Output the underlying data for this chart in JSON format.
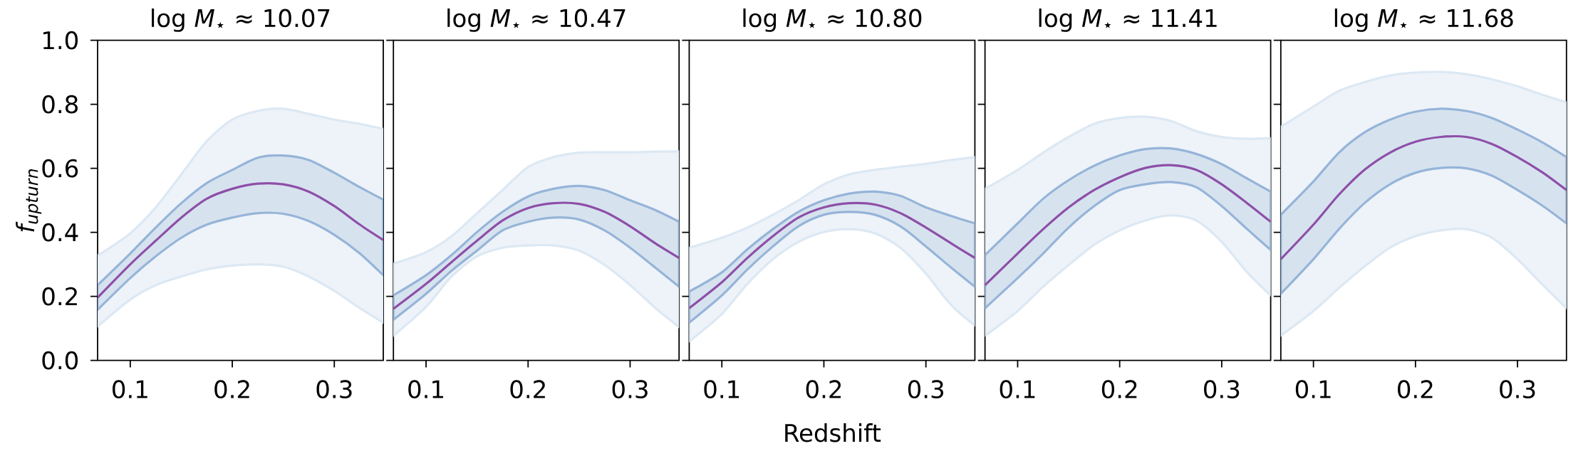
{
  "chart_data": [
    {
      "type": "line",
      "title": "log *M*$_{⋆}$ ≈ 10.07",
      "ylabel": "f$_{upturn}$",
      "x": [
        0.068,
        0.1,
        0.125,
        0.15,
        0.175,
        0.2,
        0.225,
        0.25,
        0.275,
        0.3,
        0.325,
        0.348
      ],
      "xlim": [
        0.068,
        0.348
      ],
      "xticks": [
        0.1,
        0.2,
        0.3
      ],
      "ylim": [
        0,
        1
      ],
      "yticks": [
        {
          "value": 0,
          "label": "0.0"
        },
        0.2,
        0.4,
        0.6,
        0.8,
        {
          "value": 1,
          "label": "1.0"
        }
      ],
      "grid": false,
      "series": [
        {
          "color": "#dce8f3",
          "values": [
            null,
            null,
            null,
            null,
            null,
            null,
            null,
            null,
            null,
            null,
            null,
            null
          ],
          "lower": [
            0.106,
            0.19,
            0.235,
            0.262,
            0.284,
            0.296,
            0.3,
            0.293,
            0.262,
            0.217,
            0.163,
            0.118
          ],
          "upper": [
            0.327,
            0.397,
            0.478,
            0.581,
            0.685,
            0.752,
            0.779,
            0.786,
            0.77,
            0.752,
            0.739,
            0.723
          ]
        },
        {
          "color": "#8e4fa8",
          "values": [
            0.196,
            0.3,
            0.374,
            0.446,
            0.505,
            0.536,
            0.552,
            0.55,
            0.527,
            0.482,
            0.424,
            0.376
          ],
          "lower": [
            0.158,
            0.257,
            0.325,
            0.383,
            0.424,
            0.446,
            0.46,
            0.458,
            0.435,
            0.392,
            0.334,
            0.266
          ],
          "upper": [
            0.235,
            0.334,
            0.415,
            0.491,
            0.554,
            0.595,
            0.633,
            0.64,
            0.626,
            0.586,
            0.541,
            0.502
          ]
        }
      ]
    },
    {
      "type": "line",
      "title": "log *M*$_{⋆}$ ≈ 10.47",
      "x": [
        0.068,
        0.1,
        0.125,
        0.15,
        0.175,
        0.2,
        0.225,
        0.25,
        0.275,
        0.3,
        0.325,
        0.348
      ],
      "xlim": [
        0.068,
        0.348
      ],
      "xticks": [
        0.1,
        0.2,
        0.3
      ],
      "ylim": [
        0,
        1
      ],
      "yticks": [
        0,
        0.2,
        0.4,
        0.6,
        0.8,
        1
      ],
      "tick_labels": "x",
      "grid": false,
      "series": [
        {
          "color": "#dce8f3",
          "values": [
            null,
            null,
            null,
            null,
            null,
            null,
            null,
            null,
            null,
            null,
            null,
            null
          ],
          "lower": [
            0.077,
            0.167,
            0.262,
            0.325,
            0.352,
            0.359,
            0.359,
            0.343,
            0.298,
            0.235,
            0.163,
            0.104
          ],
          "upper": [
            0.302,
            0.338,
            0.388,
            0.46,
            0.532,
            0.604,
            0.635,
            0.649,
            0.65,
            0.65,
            0.652,
            0.653
          ]
        },
        {
          "color": "#8e4fa8",
          "values": [
            0.161,
            0.239,
            0.307,
            0.374,
            0.437,
            0.476,
            0.491,
            0.489,
            0.464,
            0.419,
            0.365,
            0.32
          ],
          "lower": [
            0.127,
            0.208,
            0.28,
            0.343,
            0.406,
            0.433,
            0.446,
            0.44,
            0.406,
            0.352,
            0.289,
            0.23
          ],
          "upper": [
            0.203,
            0.266,
            0.329,
            0.401,
            0.464,
            0.512,
            0.536,
            0.545,
            0.532,
            0.5,
            0.469,
            0.433
          ]
        }
      ]
    },
    {
      "type": "line",
      "title": "log *M*$_{⋆}$ ≈ 10.80",
      "xlabel": "Redshift",
      "x": [
        0.068,
        0.1,
        0.125,
        0.15,
        0.175,
        0.2,
        0.225,
        0.25,
        0.275,
        0.3,
        0.325,
        0.348
      ],
      "xlim": [
        0.068,
        0.348
      ],
      "xticks": [
        0.1,
        0.2,
        0.3
      ],
      "ylim": [
        0,
        1
      ],
      "yticks": [
        0,
        0.2,
        0.4,
        0.6,
        0.8,
        1
      ],
      "tick_labels": "x",
      "grid": false,
      "series": [
        {
          "color": "#dce8f3",
          "values": [
            null,
            null,
            null,
            null,
            null,
            null,
            null,
            null,
            null,
            null,
            null,
            null
          ],
          "lower": [
            0.059,
            0.145,
            0.239,
            0.316,
            0.37,
            0.401,
            0.41,
            0.397,
            0.352,
            0.271,
            0.172,
            0.109
          ],
          "upper": [
            0.352,
            0.383,
            0.415,
            0.455,
            0.5,
            0.55,
            0.581,
            0.595,
            0.605,
            0.614,
            0.626,
            0.635
          ]
        },
        {
          "color": "#8e4fa8",
          "values": [
            0.163,
            0.244,
            0.32,
            0.388,
            0.446,
            0.478,
            0.491,
            0.487,
            0.46,
            0.415,
            0.365,
            0.32
          ],
          "lower": [
            0.118,
            0.203,
            0.284,
            0.356,
            0.419,
            0.455,
            0.464,
            0.455,
            0.419,
            0.356,
            0.289,
            0.23
          ],
          "upper": [
            0.215,
            0.275,
            0.347,
            0.41,
            0.464,
            0.5,
            0.521,
            0.527,
            0.514,
            0.478,
            0.451,
            0.428
          ]
        }
      ]
    },
    {
      "type": "line",
      "title": "log *M*$_{⋆}$ ≈ 11.41",
      "x": [
        0.068,
        0.1,
        0.125,
        0.15,
        0.175,
        0.2,
        0.225,
        0.25,
        0.275,
        0.3,
        0.325,
        0.348
      ],
      "xlim": [
        0.068,
        0.348
      ],
      "xticks": [
        0.1,
        0.2,
        0.3
      ],
      "ylim": [
        0,
        1
      ],
      "yticks": [
        0,
        0.2,
        0.4,
        0.6,
        0.8,
        1
      ],
      "tick_labels": "x",
      "grid": false,
      "series": [
        {
          "color": "#dce8f3",
          "values": [
            null,
            null,
            null,
            null,
            null,
            null,
            null,
            null,
            null,
            null,
            null,
            null
          ],
          "lower": [
            0.077,
            0.154,
            0.23,
            0.298,
            0.361,
            0.406,
            0.437,
            0.453,
            0.437,
            0.37,
            0.275,
            0.203
          ],
          "upper": [
            0.536,
            0.595,
            0.649,
            0.698,
            0.739,
            0.757,
            0.761,
            0.748,
            0.716,
            0.698,
            0.692,
            0.694
          ]
        },
        {
          "color": "#8e4fa8",
          "values": [
            0.235,
            0.334,
            0.41,
            0.478,
            0.532,
            0.572,
            0.601,
            0.61,
            0.595,
            0.55,
            0.491,
            0.433
          ],
          "lower": [
            0.163,
            0.257,
            0.334,
            0.415,
            0.482,
            0.532,
            0.55,
            0.557,
            0.541,
            0.482,
            0.41,
            0.345
          ],
          "upper": [
            0.329,
            0.428,
            0.505,
            0.563,
            0.608,
            0.64,
            0.66,
            0.662,
            0.645,
            0.613,
            0.568,
            0.527
          ]
        }
      ]
    },
    {
      "type": "line",
      "title": "log *M*$_{⋆}$ ≈ 11.68",
      "x": [
        0.068,
        0.1,
        0.125,
        0.15,
        0.175,
        0.2,
        0.225,
        0.25,
        0.275,
        0.3,
        0.325,
        0.348
      ],
      "xlim": [
        0.068,
        0.348
      ],
      "xticks": [
        0.1,
        0.2,
        0.3
      ],
      "ylim": [
        0,
        1
      ],
      "yticks": [
        0,
        0.2,
        0.4,
        0.6,
        0.8,
        1
      ],
      "tick_labels": "x",
      "grid": false,
      "series": [
        {
          "color": "#dce8f3",
          "values": [
            null,
            null,
            null,
            null,
            null,
            null,
            null,
            null,
            null,
            null,
            null,
            null
          ],
          "lower": [
            0.077,
            0.154,
            0.226,
            0.293,
            0.352,
            0.388,
            0.406,
            0.41,
            0.383,
            0.316,
            0.235,
            0.163
          ],
          "upper": [
            0.73,
            0.793,
            0.842,
            0.869,
            0.89,
            0.899,
            0.901,
            0.894,
            0.878,
            0.856,
            0.829,
            0.806
          ]
        },
        {
          "color": "#8e4fa8",
          "values": [
            0.316,
            0.424,
            0.518,
            0.595,
            0.649,
            0.683,
            0.698,
            0.698,
            0.676,
            0.635,
            0.586,
            0.532
          ],
          "lower": [
            0.208,
            0.316,
            0.41,
            0.491,
            0.55,
            0.586,
            0.601,
            0.6,
            0.577,
            0.532,
            0.482,
            0.428
          ],
          "upper": [
            0.455,
            0.559,
            0.649,
            0.712,
            0.752,
            0.777,
            0.786,
            0.779,
            0.757,
            0.721,
            0.68,
            0.635
          ]
        }
      ]
    }
  ]
}
